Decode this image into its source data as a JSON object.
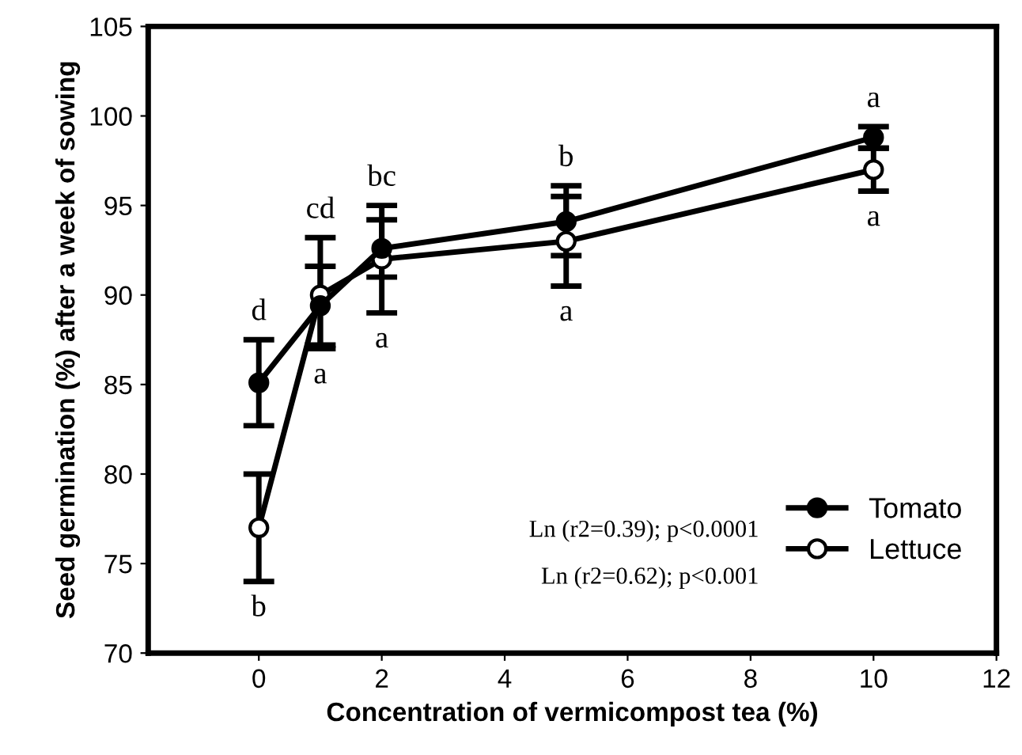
{
  "chart_data": {
    "type": "line",
    "xlabel": "Concentration of vermicompost tea (%)",
    "ylabel": "Seed germination (%) after a week of sowing",
    "x": [
      0,
      1,
      2,
      5,
      10
    ],
    "series": [
      {
        "name": "Tomato",
        "color": "#000000",
        "marker": "circle",
        "values": [
          85.1,
          89.4,
          92.6,
          94.1,
          98.8
        ],
        "errors": [
          [
            82.7,
            87.5
          ],
          [
            87.2,
            91.6
          ],
          [
            91.0,
            95.0
          ],
          [
            92.2,
            96.1
          ],
          [
            98.2,
            99.4
          ]
        ]
      },
      {
        "name": "Lettuce",
        "color": "#000000",
        "marker": "circle",
        "values": [
          77.0,
          90.0,
          92.0,
          93.0,
          97.0
        ],
        "errors": [
          [
            74.0,
            80.0
          ],
          [
            87.0,
            93.2
          ],
          [
            89.0,
            94.2
          ],
          [
            90.5,
            95.5
          ],
          [
            95.8,
            98.2
          ]
        ]
      }
    ],
    "xlim": [
      -1.8,
      12
    ],
    "xticks": [
      0,
      2,
      4,
      6,
      8,
      10,
      12
    ],
    "ylim": [
      70,
      105
    ],
    "yticks": [
      70,
      75,
      80,
      85,
      90,
      95,
      100,
      105
    ],
    "grid": false,
    "legend": "bottom right",
    "line_style": "solid",
    "annotations": [
      {
        "text": "d",
        "x": 0,
        "y": 85.1
      },
      {
        "text": "cd",
        "x": 1,
        "y": 89.4
      },
      {
        "text": "bc",
        "x": 2,
        "y": 92.6
      },
      {
        "text": "b",
        "x": 5,
        "y": 94.1
      },
      {
        "text": "a",
        "x": 10,
        "y": 98.8
      },
      {
        "text": "b",
        "x": 0,
        "y": 77.0
      },
      {
        "text": "a",
        "x": 1,
        "y": 90.0
      },
      {
        "text": "a",
        "x": 2,
        "y": 92.0
      },
      {
        "text": "a",
        "x": 5,
        "y": 93.0
      },
      {
        "text": "a",
        "x": 10,
        "y": 97.0
      },
      "Ln (r2=0.39); p<0.0001",
      "Ln (r2=0.62); p<0.001"
    ]
  }
}
